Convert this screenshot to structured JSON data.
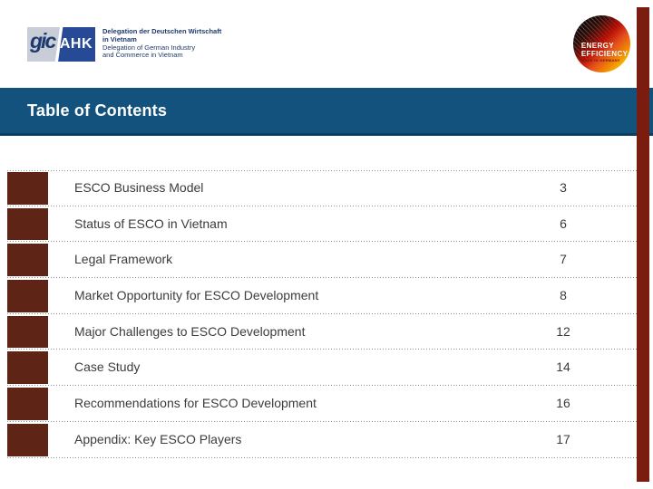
{
  "ahk_logo": {
    "gic_text": "gic",
    "ahk_text": "AHK",
    "desc_lines": [
      "Delegation der Deutschen Wirtschaft",
      "in Vietnam",
      "Delegation of German Industry",
      "and Commerce in Vietnam"
    ]
  },
  "energy_logo": {
    "line1": "ENERGY",
    "line2": "EFFICIENCY",
    "line3": "MADE IN GERMANY"
  },
  "title_bar": {
    "title": "Table of Contents"
  },
  "toc_rows": [
    {
      "label": "ESCO Business Model",
      "page": "3"
    },
    {
      "label": "Status of ESCO in Vietnam",
      "page": "6"
    },
    {
      "label": "Legal Framework",
      "page": "7"
    },
    {
      "label": "Market Opportunity for ESCO Development",
      "page": "8"
    },
    {
      "label": "Major Challenges to ESCO Development",
      "page": "12"
    },
    {
      "label": "Case Study",
      "page": "14"
    },
    {
      "label": "Recommendations for ESCO Development",
      "page": "16"
    },
    {
      "label": "Appendix: Key ESCO Players",
      "page": "17"
    }
  ],
  "colors": {
    "title_bar_bg": "#14527e",
    "title_bar_border": "#0c3e61",
    "square": "#5e2517",
    "side_bar": "#7a1d10",
    "ahk_blue": "#1e3a6e",
    "ahk_bright_blue": "#264a96",
    "text": "#3c3c3c"
  }
}
